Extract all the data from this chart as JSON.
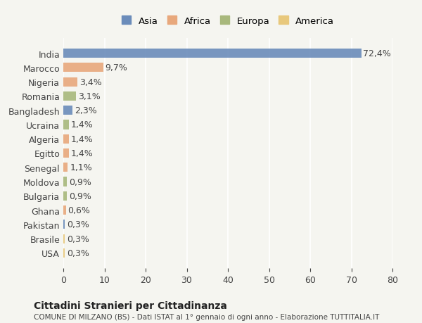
{
  "countries": [
    "India",
    "Marocco",
    "Nigeria",
    "Romania",
    "Bangladesh",
    "Ucraina",
    "Algeria",
    "Egitto",
    "Senegal",
    "Moldova",
    "Bulgaria",
    "Ghana",
    "Pakistan",
    "Brasile",
    "USA"
  ],
  "values": [
    72.4,
    9.7,
    3.4,
    3.1,
    2.3,
    1.4,
    1.4,
    1.4,
    1.1,
    0.9,
    0.9,
    0.6,
    0.3,
    0.3,
    0.3
  ],
  "labels": [
    "72,4%",
    "9,7%",
    "3,4%",
    "3,1%",
    "2,3%",
    "1,4%",
    "1,4%",
    "1,4%",
    "1,1%",
    "0,9%",
    "0,9%",
    "0,6%",
    "0,3%",
    "0,3%",
    "0,3%"
  ],
  "continents": [
    "Asia",
    "Africa",
    "Africa",
    "Europa",
    "Asia",
    "Europa",
    "Africa",
    "Africa",
    "Africa",
    "Europa",
    "Europa",
    "Africa",
    "Asia",
    "America",
    "America"
  ],
  "continent_colors": {
    "Asia": "#6b8cba",
    "Africa": "#e8a87c",
    "Europa": "#a8b87c",
    "America": "#e8c87c"
  },
  "legend_order": [
    "Asia",
    "Africa",
    "Europa",
    "America"
  ],
  "xlim": [
    0,
    80
  ],
  "xticks": [
    0,
    10,
    20,
    30,
    40,
    50,
    60,
    70,
    80
  ],
  "title": "Cittadini Stranieri per Cittadinanza",
  "subtitle": "COMUNE DI MILZANO (BS) - Dati ISTAT al 1° gennaio di ogni anno - Elaborazione TUTTITALIA.IT",
  "background_color": "#f5f5f0",
  "bar_height": 0.65,
  "grid_color": "#ffffff",
  "label_fontsize": 9,
  "tick_fontsize": 9
}
